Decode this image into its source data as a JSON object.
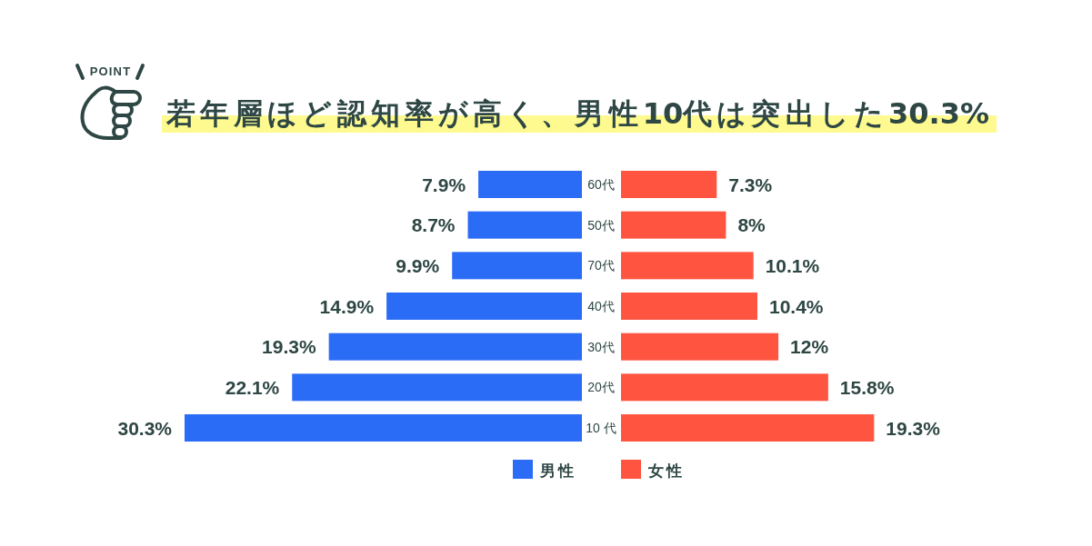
{
  "chart_data": [
    {
      "type": "bar",
      "orientation": "horizontal",
      "title": "若年層ほど認知率が高く、男性10代は突出した30.3%",
      "annotations": [
        "POINT"
      ],
      "categories": [
        "60代",
        "50代",
        "70代",
        "40代",
        "30代",
        "20代",
        "10 代"
      ],
      "tick_labels": false,
      "series": [
        {
          "name": "男性",
          "color": "#2b6cf6",
          "values": [
            7.9,
            8.7,
            9.9,
            14.9,
            19.3,
            22.1,
            30.3
          ],
          "value_labels": [
            "7.9%",
            "8.7%",
            "9.9%",
            "14.9%",
            "19.3%",
            "22.1%",
            "30.3%"
          ]
        }
      ],
      "legend": "bottom"
    },
    {
      "type": "bar",
      "orientation": "horizontal",
      "categories": [
        "60代",
        "50代",
        "70代",
        "40代",
        "30代",
        "20代",
        "10 代"
      ],
      "series": [
        {
          "name": "女性",
          "color": "#ff5540",
          "values": [
            7.3,
            8,
            10.1,
            10.4,
            12,
            15.8,
            19.3
          ],
          "value_labels": [
            "7.3%",
            "8%",
            "10.1%",
            "10.4%",
            "12%",
            "15.8%",
            "19.3%"
          ]
        }
      ],
      "legend": "bottom"
    }
  ]
}
